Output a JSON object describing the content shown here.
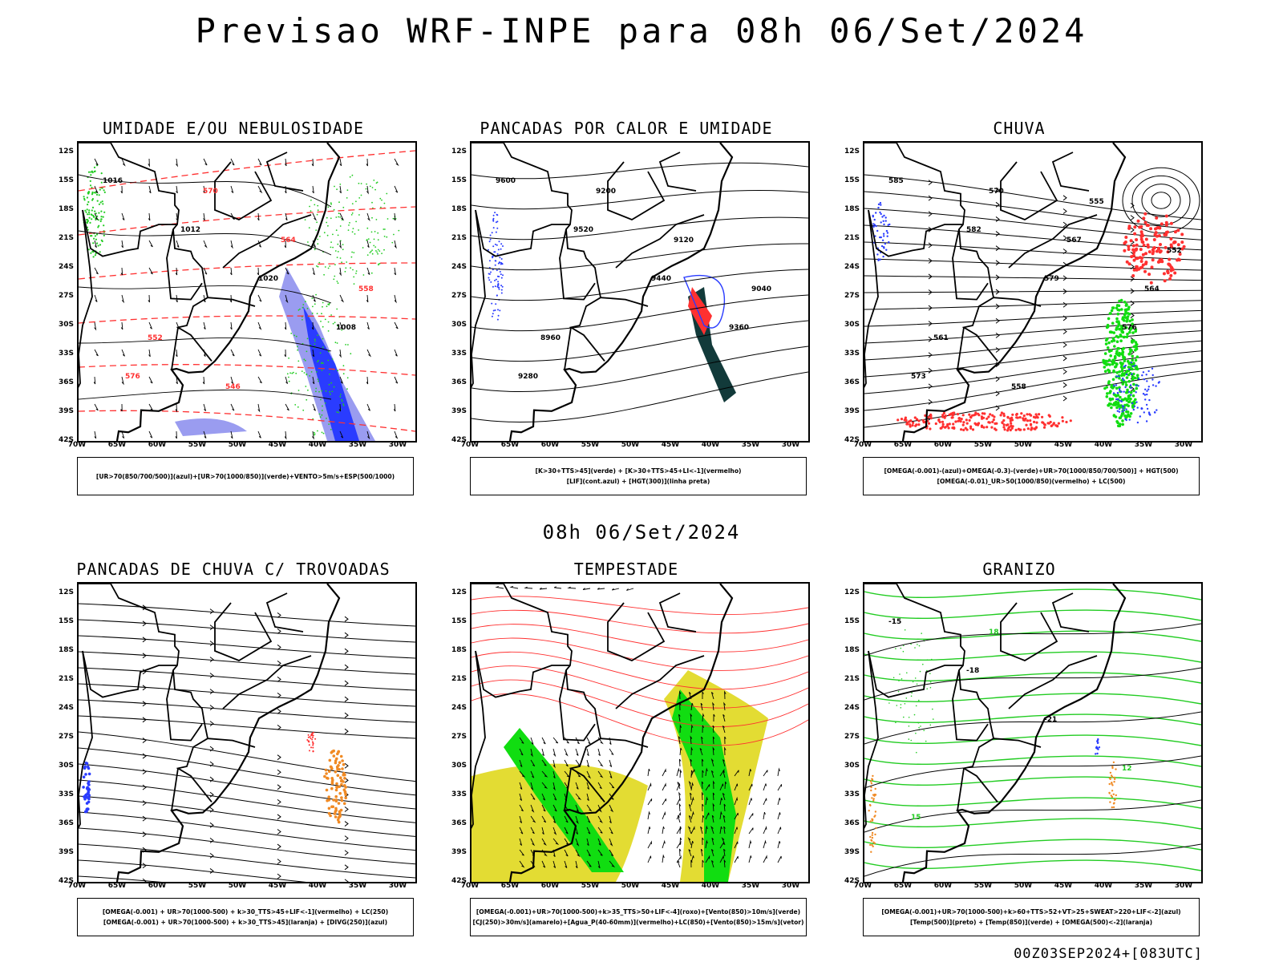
{
  "main_title": "Previsao WRF-INPE  para 08h 06/Set/2024",
  "middle_title": "08h 06/Set/2024",
  "footer": "00Z03SEP2024+[083UTC]",
  "axes": {
    "lat_labels": [
      "12S",
      "15S",
      "18S",
      "21S",
      "24S",
      "27S",
      "30S",
      "33S",
      "36S",
      "39S",
      "42S"
    ],
    "lon_labels": [
      "70W",
      "65W",
      "60W",
      "55W",
      "50W",
      "45W",
      "40W",
      "35W",
      "30W"
    ]
  },
  "colors": {
    "red": "#ff3030",
    "green": "#22cc22",
    "blue": "#2a3cff",
    "lightblue": "#9a9cf0",
    "yellow": "#e3dc33",
    "orange": "#f08a24",
    "darkgreen": "#123a3a",
    "brightgreen": "#11dd11"
  },
  "panels": [
    {
      "id": "umidade",
      "title": "UMIDADE E/OU NEBULOSIDADE",
      "legend": [
        "[UR>70(850/700/500)](azul)+[UR>70(1000/850)](verde)+VENTO>5m/s+ESP(500/1000)"
      ],
      "contour_labels": [
        {
          "text": "1016",
          "color": "#000000"
        },
        {
          "text": "1012",
          "color": "#000000"
        },
        {
          "text": "1020",
          "color": "#000000"
        },
        {
          "text": "1008",
          "color": "#000000"
        },
        {
          "text": "576",
          "color": "#ff3030"
        },
        {
          "text": "570",
          "color": "#ff3030"
        },
        {
          "text": "564",
          "color": "#ff3030"
        },
        {
          "text": "558",
          "color": "#ff3030"
        },
        {
          "text": "552",
          "color": "#ff3030"
        },
        {
          "text": "546",
          "color": "#ff3030"
        }
      ]
    },
    {
      "id": "pancadas-calor",
      "title": "PANCADAS POR CALOR E UMIDADE",
      "legend": [
        "[K>30+TTS>45](verde) + [K>30+TTS>45+LI<-1](vermelho)",
        "[LIF](cont.azul) + [HGT(300)](linha preta)"
      ],
      "contour_labels": [
        {
          "text": "9600",
          "color": "#000000"
        },
        {
          "text": "9520",
          "color": "#000000"
        },
        {
          "text": "9440",
          "color": "#000000"
        },
        {
          "text": "9360",
          "color": "#000000"
        },
        {
          "text": "9280",
          "color": "#000000"
        },
        {
          "text": "9200",
          "color": "#000000"
        },
        {
          "text": "9120",
          "color": "#000000"
        },
        {
          "text": "9040",
          "color": "#000000"
        },
        {
          "text": "8960",
          "color": "#000000"
        }
      ]
    },
    {
      "id": "chuva",
      "title": "CHUVA",
      "legend": [
        "[OMEGA(-0.001)-(azul)+OMEGA(-0.3)-(verde)+UR>70(1000/850/700/500)] + HGT(500)",
        "[OMEGA(-0.01)_UR>50(1000/850)(vermelho) + LC(500)"
      ],
      "contour_labels": [
        {
          "text": "585",
          "color": "#000000"
        },
        {
          "text": "582",
          "color": "#000000"
        },
        {
          "text": "579",
          "color": "#000000"
        },
        {
          "text": "576",
          "color": "#000000"
        },
        {
          "text": "573",
          "color": "#000000"
        },
        {
          "text": "570",
          "color": "#000000"
        },
        {
          "text": "567",
          "color": "#000000"
        },
        {
          "text": "564",
          "color": "#000000"
        },
        {
          "text": "561",
          "color": "#000000"
        },
        {
          "text": "558",
          "color": "#000000"
        },
        {
          "text": "555",
          "color": "#000000"
        },
        {
          "text": "552",
          "color": "#000000"
        }
      ]
    },
    {
      "id": "trovoadas",
      "title": "PANCADAS DE CHUVA C/ TROVOADAS",
      "legend": [
        "[OMEGA(-0.001) + UR>70(1000-500) + k>30_TTS>45+LIF<-1](vermelho) + LC(250)",
        "[OMEGA(-0.001) + UR>70(1000-500) + k>30_TTS>45](laranja) + [DIVG(250)](azul)"
      ],
      "contour_labels": []
    },
    {
      "id": "tempestade",
      "title": "TEMPESTADE",
      "legend": [
        "[OMEGA(-0.001)+UR>70(1000-500)+k>35_TTS>50+LIF<-4](roxo)+[Vento(850)>10m/s](verde)",
        "[CJ(250)>30m/s](amarelo)+[Agua_P(40-60mm)](vermelho)+LC(850)+[Vento(850)>15m/s](vetor)"
      ],
      "contour_labels": []
    },
    {
      "id": "granizo",
      "title": "GRANIZO",
      "legend": [
        "[OMEGA(-0.001)+UR>70(1000-500)+k>60+TTS>52+VT>25+SWEAT>220+LIF<-2](azul)",
        "[Temp(500)](preto) + [Temp(850)](verde) + [OMEGA(500)<-2](laranja)"
      ],
      "contour_labels": [
        {
          "text": "-15",
          "color": "#000000"
        },
        {
          "text": "-18",
          "color": "#000000"
        },
        {
          "text": "-21",
          "color": "#000000"
        },
        {
          "text": "12",
          "color": "#22cc22"
        },
        {
          "text": "15",
          "color": "#22cc22"
        },
        {
          "text": "18",
          "color": "#22cc22"
        }
      ]
    }
  ]
}
